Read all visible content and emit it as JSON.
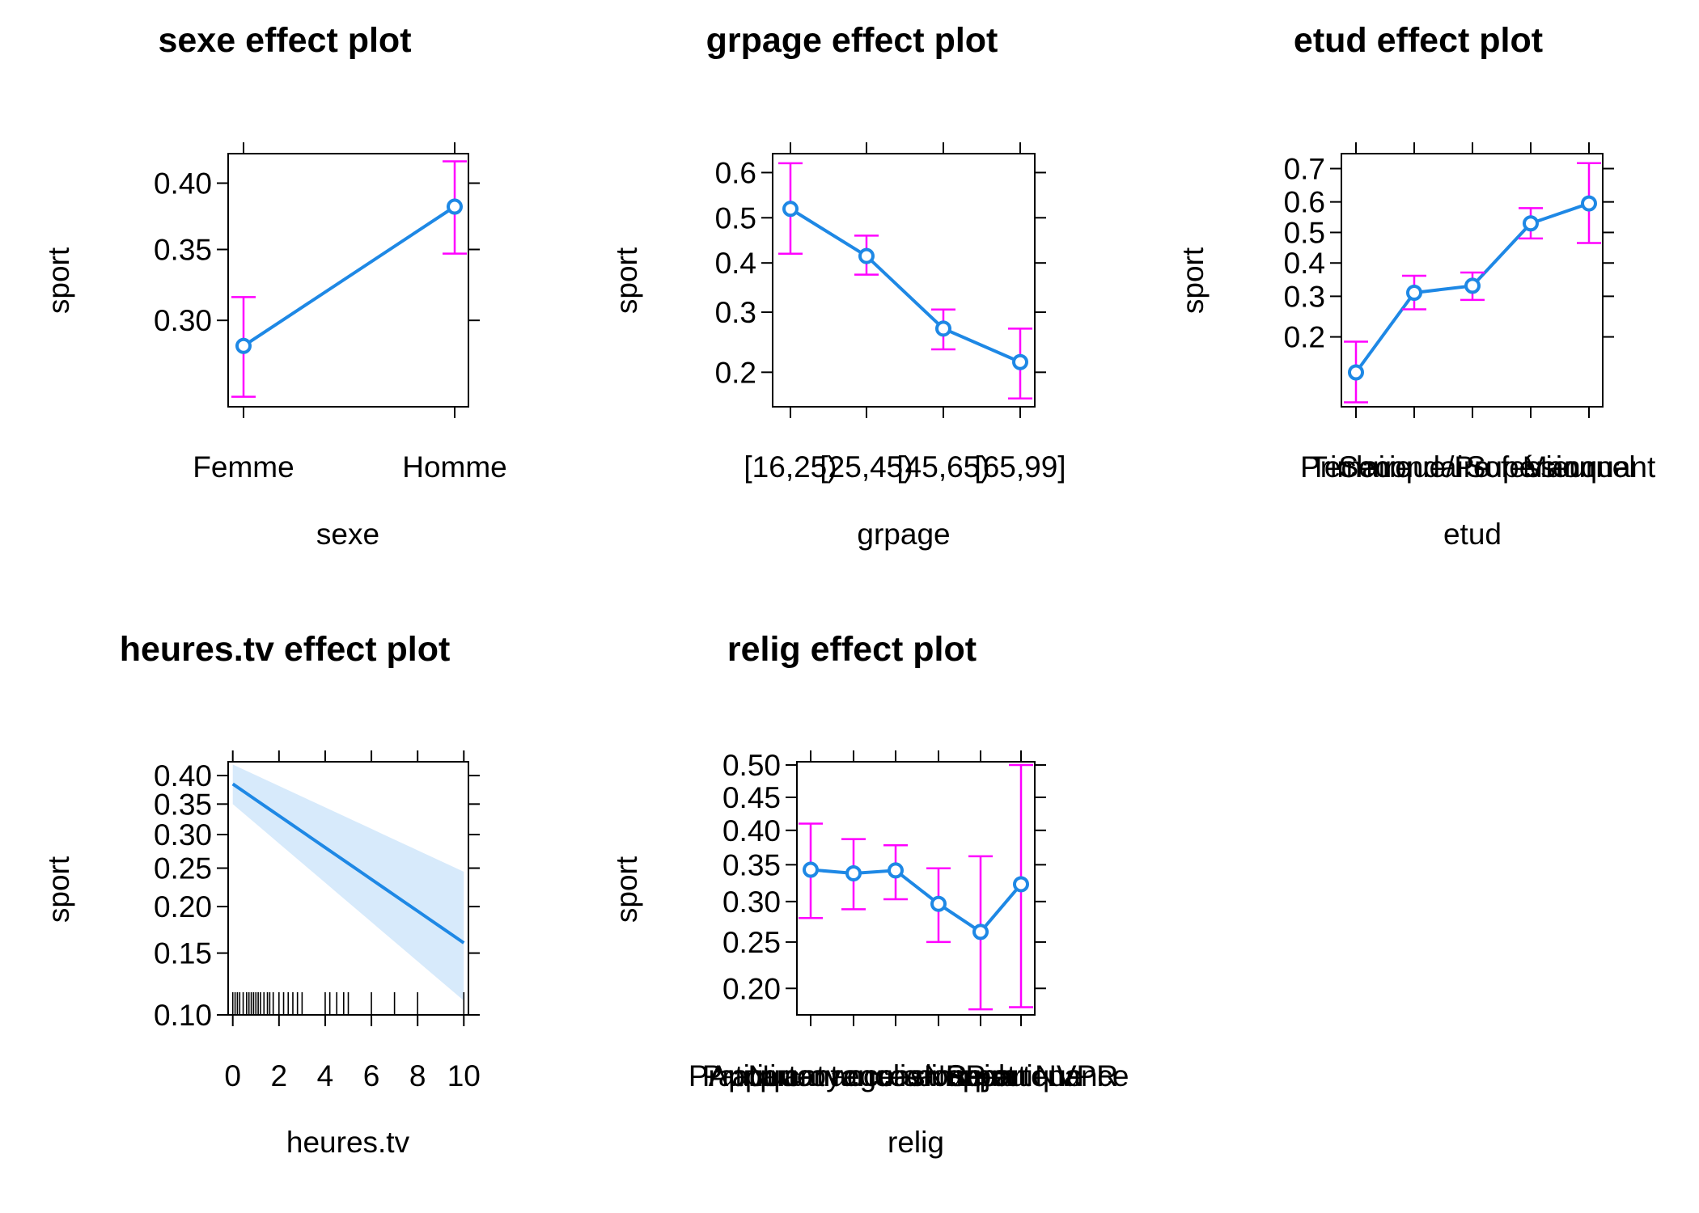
{
  "chart_data": [
    {
      "type": "line",
      "title": "sexe effect plot",
      "xlabel": "sexe",
      "ylabel": "sport",
      "categories": [
        "Femme",
        "Homme"
      ],
      "values": [
        0.283,
        0.382
      ],
      "lower": [
        0.251,
        0.347
      ],
      "upper": [
        0.316,
        0.417
      ],
      "yticks": [
        0.3,
        0.35,
        0.4
      ],
      "ytick_labels": [
        "0.30",
        "0.35",
        "0.40"
      ],
      "ylim": [
        0.245,
        0.423
      ]
    },
    {
      "type": "line",
      "title": "grpage effect plot",
      "xlabel": "grpage",
      "ylabel": "sport",
      "categories": [
        "[16,25)",
        "[25,45)",
        "[45,65)",
        "[65,99]"
      ],
      "values": [
        0.52,
        0.415,
        0.27,
        0.215
      ],
      "lower": [
        0.42,
        0.375,
        0.235,
        0.165
      ],
      "upper": [
        0.62,
        0.46,
        0.305,
        0.27
      ],
      "yticks": [
        0.2,
        0.3,
        0.4,
        0.5,
        0.6
      ],
      "ytick_labels": [
        "0.2",
        "0.3",
        "0.4",
        "0.5",
        "0.6"
      ],
      "ylim": [
        0.155,
        0.64
      ]
    },
    {
      "type": "line",
      "title": "etud effect plot",
      "xlabel": "etud",
      "ylabel": "sport",
      "categories": [
        "Primaire",
        "Secondaire",
        "Technique/Professionnel",
        "Supérieur",
        "Manquant"
      ],
      "values": [
        0.135,
        0.31,
        0.33,
        0.53,
        0.595
      ],
      "lower": [
        0.095,
        0.265,
        0.29,
        0.48,
        0.465
      ],
      "upper": [
        0.19,
        0.36,
        0.37,
        0.58,
        0.715
      ],
      "yticks": [
        0.2,
        0.3,
        0.4,
        0.5,
        0.6,
        0.7
      ],
      "ytick_labels": [
        "0.2",
        "0.3",
        "0.4",
        "0.5",
        "0.6",
        "0.7"
      ],
      "ylim": [
        0.09,
        0.74
      ]
    },
    {
      "type": "line",
      "title": "heures.tv effect plot",
      "xlabel": "heures.tv",
      "ylabel": "sport",
      "x": [
        0,
        10
      ],
      "values": [
        0.385,
        0.16
      ],
      "band_lower": [
        0.35,
        0.11
      ],
      "band_upper": [
        0.42,
        0.245
      ],
      "xticks": [
        0,
        2,
        4,
        6,
        8,
        10
      ],
      "xtick_labels": [
        "0",
        "2",
        "4",
        "6",
        "8",
        "10"
      ],
      "yticks": [
        0.1,
        0.15,
        0.2,
        0.25,
        0.3,
        0.35,
        0.4
      ],
      "ytick_labels": [
        "0.10",
        "0.15",
        "0.20",
        "0.25",
        "0.30",
        "0.35",
        "0.40"
      ],
      "xlim": [
        -0.2,
        10.2
      ],
      "ylim": [
        0.1,
        0.425
      ],
      "rug": [
        0,
        0.1,
        0.2,
        0.3,
        0.45,
        0.6,
        0.7,
        0.8,
        0.9,
        1.0,
        1.1,
        1.2,
        1.35,
        1.5,
        1.6,
        1.75,
        2.0,
        2.2,
        2.4,
        2.6,
        2.8,
        3.0,
        4.0,
        4.2,
        4.5,
        4.8,
        5.0,
        6.0,
        7.0,
        8.0,
        10.0
      ]
    },
    {
      "type": "line",
      "title": "relig effect plot",
      "xlabel": "relig",
      "ylabel": "sport",
      "categories": [
        "Pratiquant regulier",
        "Pratiquant occasionnel",
        "Appartenance sans pratique",
        "Ni croyance ni appartenance",
        "Rejet",
        "NSP ou NVPR"
      ],
      "values": [
        0.343,
        0.338,
        0.342,
        0.297,
        0.262,
        0.323
      ],
      "lower": [
        0.279,
        0.29,
        0.303,
        0.25,
        0.18,
        0.182
      ],
      "upper": [
        0.41,
        0.387,
        0.378,
        0.345,
        0.362,
        0.5
      ],
      "yticks": [
        0.2,
        0.25,
        0.3,
        0.35,
        0.4,
        0.45,
        0.5
      ],
      "ytick_labels": [
        "0.20",
        "0.25",
        "0.30",
        "0.35",
        "0.40",
        "0.45",
        "0.50"
      ],
      "ylim": [
        0.175,
        0.505
      ]
    }
  ]
}
